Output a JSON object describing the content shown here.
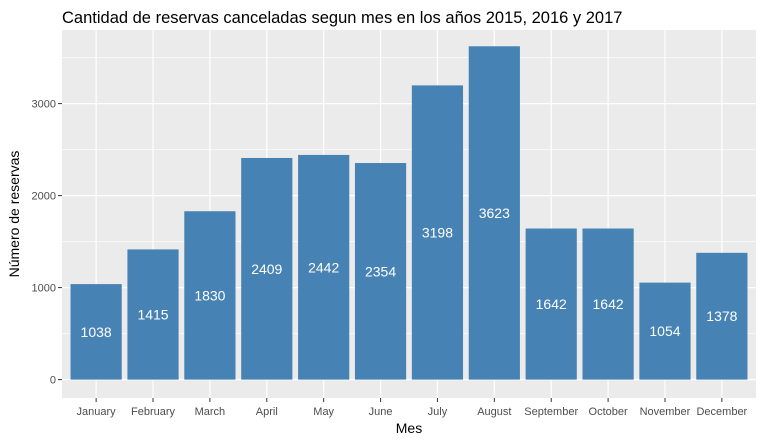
{
  "chart_data": {
    "type": "bar",
    "title": "Cantidad de reservas canceladas segun mes en los años 2015, 2016 y 2017",
    "xlabel": "Mes",
    "ylabel": "Número de reservas",
    "categories": [
      "January",
      "February",
      "March",
      "April",
      "May",
      "June",
      "July",
      "August",
      "September",
      "October",
      "November",
      "December"
    ],
    "values": [
      1038,
      1415,
      1830,
      2409,
      2442,
      2354,
      3198,
      3623,
      1642,
      1642,
      1054,
      1378
    ],
    "data_labels": [
      "1038",
      "1415",
      "1830",
      "2409",
      "2442",
      "2354",
      "3198",
      "3623",
      "1642",
      "1642",
      "1054",
      "1378"
    ],
    "yticks": [
      0,
      1000,
      2000,
      3000
    ],
    "ytick_labels": [
      "0",
      "1000",
      "2000",
      "3000"
    ],
    "ylim": [
      -200,
      3800
    ],
    "grid": true,
    "legend": "none",
    "colors": {
      "bar": "#4682b4",
      "panel": "#ebebeb",
      "grid": "#ffffff",
      "data_label": "#ffffff",
      "tick_text": "#4d4d4d",
      "title_text": "#000000"
    }
  }
}
